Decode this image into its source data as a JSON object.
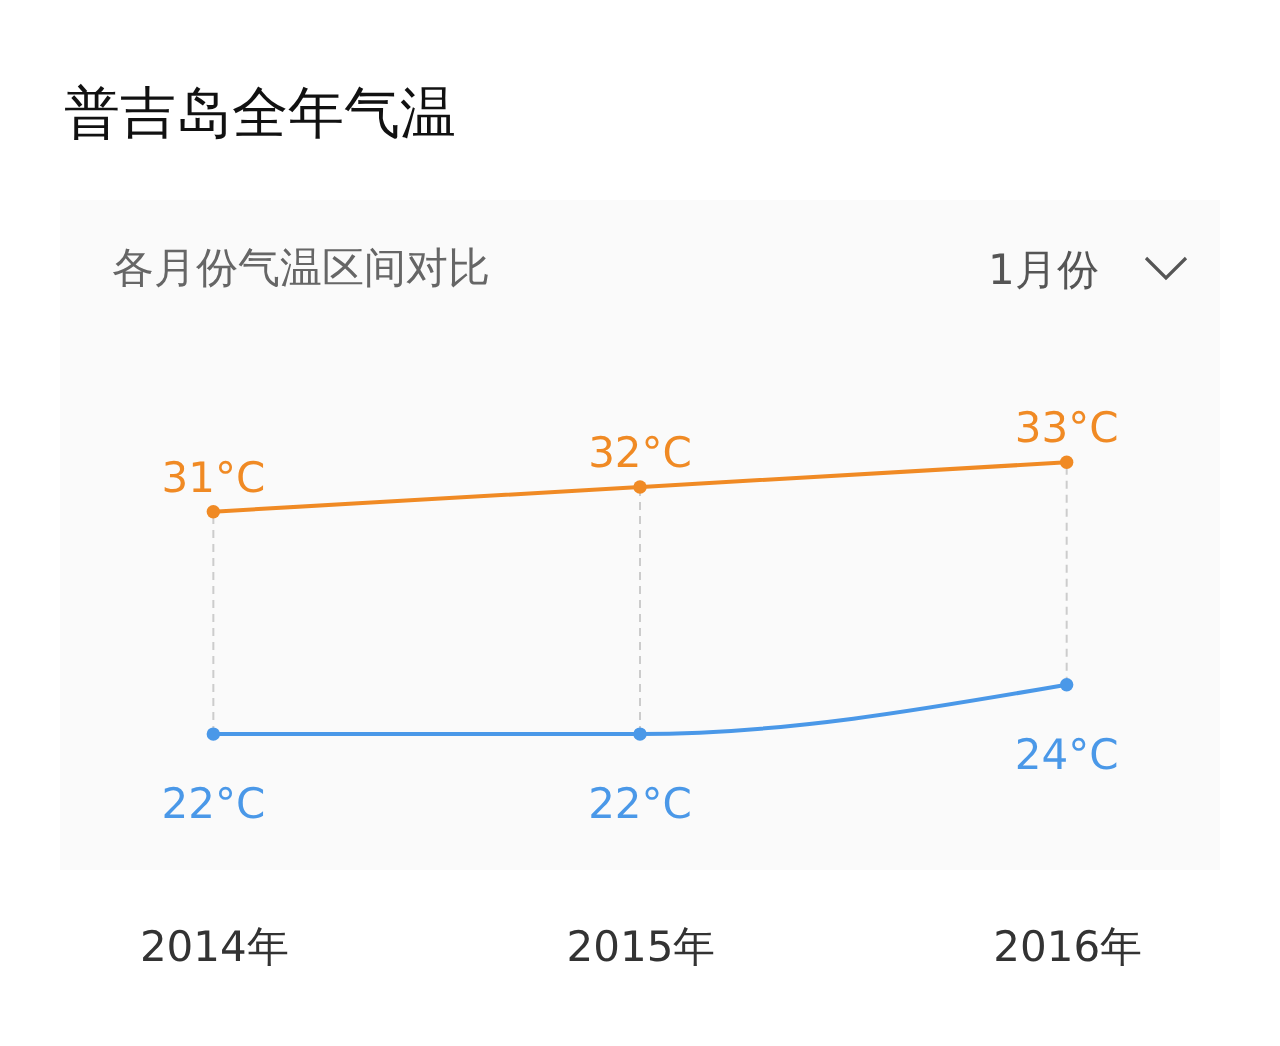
{
  "chart_data": {
    "type": "line",
    "title": "普吉岛全年气温",
    "subtitle": "各月份气温区间对比",
    "annotations": [
      "1月份"
    ],
    "categories": [
      "2014年",
      "2015年",
      "2016年"
    ],
    "marker": "circle",
    "line_style": "solid",
    "legend": false,
    "grid": "x",
    "series": [
      {
        "color": "#f08a24",
        "values": [
          31,
          32,
          33
        ],
        "value_labels": [
          "31°C",
          "32°C",
          "33°C"
        ]
      },
      {
        "color": "#4a98e8",
        "values": [
          22,
          22,
          24
        ],
        "value_labels": [
          "22°C",
          "22°C",
          "24°C"
        ]
      }
    ]
  }
}
